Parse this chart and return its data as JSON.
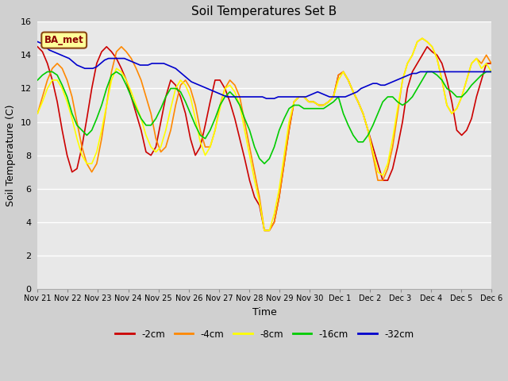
{
  "title": "Soil Temperatures Set B",
  "xlabel": "Time",
  "ylabel": "Soil Temperature (C)",
  "ylim": [
    0,
    16
  ],
  "yticks": [
    0,
    2,
    4,
    6,
    8,
    10,
    12,
    14,
    16
  ],
  "legend_label": "BA_met",
  "legend_text_color": "#8b0000",
  "legend_bg": "#ffff99",
  "legend_border": "#8b4513",
  "series_colors": [
    "#cc0000",
    "#ff8800",
    "#ffff00",
    "#00cc00",
    "#0000cc"
  ],
  "series_labels": [
    "-2cm",
    "-4cm",
    "-8cm",
    "-16cm",
    "-32cm"
  ],
  "x_labels": [
    "Nov 21",
    "Nov 22",
    "Nov 23",
    "Nov 24",
    "Nov 25",
    "Nov 26",
    "Nov 27",
    "Nov 28",
    "Nov 29",
    "Nov 30",
    "Dec 1",
    "Dec 2",
    "Dec 3",
    "Dec 4",
    "Dec 5",
    "Dec 6"
  ],
  "neg2cm": [
    14.5,
    14.2,
    13.5,
    12.5,
    11.2,
    9.5,
    8.0,
    7.0,
    7.2,
    8.5,
    10.2,
    12.0,
    13.5,
    14.2,
    14.5,
    14.2,
    13.8,
    13.2,
    12.5,
    11.5,
    10.5,
    9.5,
    8.2,
    8.0,
    8.5,
    10.0,
    11.5,
    12.5,
    12.2,
    11.5,
    10.5,
    9.0,
    8.0,
    8.5,
    9.8,
    11.2,
    12.5,
    12.5,
    12.0,
    11.2,
    10.2,
    9.0,
    7.8,
    6.5,
    5.5,
    5.0,
    3.5,
    3.5,
    4.0,
    5.5,
    7.5,
    9.5,
    11.2,
    11.5,
    11.5,
    11.2,
    11.2,
    11.0,
    11.0,
    11.2,
    11.5,
    12.8,
    13.0,
    12.5,
    11.8,
    11.2,
    10.5,
    9.5,
    8.5,
    7.5,
    6.5,
    6.5,
    7.2,
    8.5,
    10.0,
    12.0,
    13.0,
    13.5,
    14.0,
    14.5,
    14.2,
    14.0,
    13.5,
    12.5,
    11.2,
    9.5,
    9.2,
    9.5,
    10.2,
    11.5,
    12.5,
    13.5,
    13.5
  ],
  "neg4cm": [
    10.5,
    11.5,
    12.5,
    13.2,
    13.5,
    13.2,
    12.5,
    11.5,
    10.0,
    8.5,
    7.5,
    7.0,
    7.5,
    9.0,
    11.0,
    13.0,
    14.2,
    14.5,
    14.2,
    13.8,
    13.2,
    12.5,
    11.5,
    10.5,
    9.0,
    8.2,
    8.5,
    9.5,
    11.0,
    12.2,
    12.5,
    12.0,
    11.0,
    9.5,
    8.5,
    8.5,
    9.5,
    11.0,
    12.0,
    12.5,
    12.2,
    11.5,
    10.0,
    8.5,
    7.0,
    5.5,
    3.5,
    3.5,
    4.0,
    5.5,
    7.5,
    9.5,
    11.2,
    11.5,
    11.5,
    11.2,
    11.2,
    11.0,
    11.0,
    11.2,
    11.5,
    12.8,
    13.0,
    12.5,
    11.8,
    11.2,
    10.5,
    9.5,
    8.0,
    6.5,
    6.5,
    7.2,
    8.5,
    10.5,
    12.5,
    13.5,
    14.0,
    14.8,
    15.0,
    14.8,
    14.5,
    13.8,
    12.5,
    11.0,
    10.5,
    10.8,
    11.5,
    12.5,
    13.5,
    13.8,
    13.5,
    14.0,
    13.5
  ],
  "neg8cm": [
    10.5,
    11.2,
    12.0,
    12.5,
    12.5,
    12.0,
    11.2,
    10.2,
    9.0,
    8.0,
    7.5,
    7.5,
    8.2,
    9.5,
    11.0,
    12.5,
    13.2,
    13.0,
    12.5,
    11.8,
    11.0,
    10.2,
    9.2,
    8.5,
    8.2,
    8.5,
    9.5,
    10.8,
    12.0,
    12.5,
    12.2,
    11.5,
    10.2,
    8.8,
    8.0,
    8.5,
    9.5,
    10.8,
    12.0,
    12.2,
    11.8,
    11.0,
    9.5,
    8.0,
    6.5,
    5.2,
    3.5,
    3.5,
    4.5,
    6.0,
    8.0,
    10.0,
    11.2,
    11.5,
    11.5,
    11.2,
    11.2,
    11.0,
    11.0,
    11.2,
    11.5,
    12.5,
    13.0,
    12.5,
    11.8,
    11.2,
    10.5,
    9.5,
    8.2,
    7.0,
    6.8,
    7.5,
    9.0,
    10.8,
    12.5,
    13.5,
    14.0,
    14.8,
    15.0,
    14.8,
    14.5,
    13.8,
    12.5,
    11.0,
    10.5,
    10.8,
    11.5,
    12.5,
    13.5,
    13.8,
    13.2,
    13.5,
    13.0
  ],
  "neg16cm": [
    12.5,
    12.8,
    13.0,
    13.0,
    12.8,
    12.2,
    11.5,
    10.5,
    9.8,
    9.5,
    9.2,
    9.5,
    10.2,
    11.0,
    12.0,
    12.8,
    13.0,
    12.8,
    12.2,
    11.5,
    10.8,
    10.2,
    9.8,
    9.8,
    10.2,
    10.8,
    11.5,
    12.0,
    12.0,
    11.8,
    11.2,
    10.5,
    9.8,
    9.2,
    9.0,
    9.5,
    10.2,
    11.0,
    11.5,
    11.8,
    11.5,
    11.0,
    10.2,
    9.5,
    8.5,
    7.8,
    7.5,
    7.8,
    8.5,
    9.5,
    10.2,
    10.8,
    11.0,
    11.0,
    10.8,
    10.8,
    10.8,
    10.8,
    10.8,
    11.0,
    11.2,
    11.5,
    10.5,
    9.8,
    9.2,
    8.8,
    8.8,
    9.2,
    9.8,
    10.5,
    11.2,
    11.5,
    11.5,
    11.2,
    11.0,
    11.2,
    11.5,
    12.0,
    12.5,
    13.0,
    13.0,
    12.8,
    12.5,
    12.0,
    11.8,
    11.5,
    11.5,
    11.8,
    12.2,
    12.5,
    12.8,
    13.0,
    13.0
  ],
  "neg32cm": [
    14.8,
    14.7,
    14.5,
    14.3,
    14.2,
    14.1,
    14.0,
    13.9,
    13.8,
    13.6,
    13.4,
    13.3,
    13.2,
    13.2,
    13.2,
    13.3,
    13.5,
    13.7,
    13.8,
    13.8,
    13.8,
    13.8,
    13.8,
    13.7,
    13.6,
    13.5,
    13.4,
    13.4,
    13.4,
    13.5,
    13.5,
    13.5,
    13.5,
    13.4,
    13.3,
    13.2,
    13.0,
    12.8,
    12.6,
    12.4,
    12.3,
    12.2,
    12.1,
    12.0,
    11.9,
    11.8,
    11.7,
    11.6,
    11.5,
    11.5,
    11.5,
    11.5,
    11.5,
    11.5,
    11.5,
    11.5,
    11.5,
    11.5,
    11.4,
    11.4,
    11.4,
    11.5,
    11.5,
    11.5,
    11.5,
    11.5,
    11.5,
    11.5,
    11.5,
    11.6,
    11.7,
    11.8,
    11.7,
    11.6,
    11.5,
    11.5,
    11.5,
    11.5,
    11.5,
    11.6,
    11.7,
    11.8,
    12.0,
    12.1,
    12.2,
    12.3,
    12.3,
    12.2,
    12.2,
    12.3,
    12.4,
    12.5,
    12.6,
    12.7,
    12.8,
    12.9,
    12.9,
    13.0,
    13.0,
    13.0,
    13.0,
    13.0,
    13.0,
    13.0,
    13.0,
    13.0,
    13.0,
    13.0,
    13.0,
    13.0,
    13.0,
    13.0,
    13.0,
    13.0,
    13.0,
    13.0
  ]
}
